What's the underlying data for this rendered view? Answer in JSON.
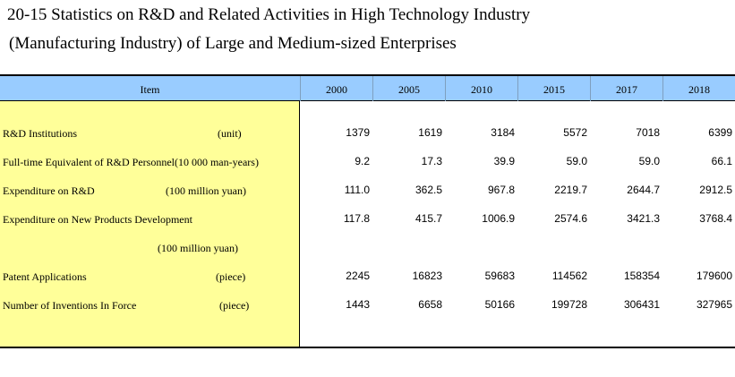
{
  "title": {
    "line1": "20-15  Statistics on R&D and Related Activities in High Technology Industry",
    "line2": "(Manufacturing Industry) of Large and Medium-sized Enterprises"
  },
  "header": {
    "item": "Item",
    "years": [
      "2000",
      "2005",
      "2010",
      "2015",
      "2017",
      "2018"
    ]
  },
  "rows": [
    {
      "label": "R&D Institutions",
      "unit": "(unit)",
      "values": [
        "1379",
        "1619",
        "3184",
        "5572",
        "7018",
        "6399"
      ]
    },
    {
      "label": "Full-time Equivalent of R&D Personnel(10 000 man-years)",
      "unit": "",
      "values": [
        "9.2",
        "17.3",
        "39.9",
        "59.0",
        "59.0",
        "66.1"
      ]
    },
    {
      "label": "Expenditure on R&D",
      "unit": "(100 million yuan)",
      "values": [
        "111.0",
        "362.5",
        "967.8",
        "2219.7",
        "2644.7",
        "2912.5"
      ]
    },
    {
      "label": "Expenditure on New Products Development",
      "unit": "(100 million yuan)",
      "values": [
        "117.8",
        "415.7",
        "1006.9",
        "2574.6",
        "3421.3",
        "3768.4"
      ]
    },
    {
      "label": "Patent Applications",
      "unit": "(piece)",
      "values": [
        "2245",
        "16823",
        "59683",
        "114562",
        "158354",
        "179600"
      ]
    },
    {
      "label": "Number of Inventions In Force",
      "unit": "(piece)",
      "values": [
        "1443",
        "6658",
        "50166",
        "199728",
        "306431",
        "327965"
      ]
    }
  ]
}
